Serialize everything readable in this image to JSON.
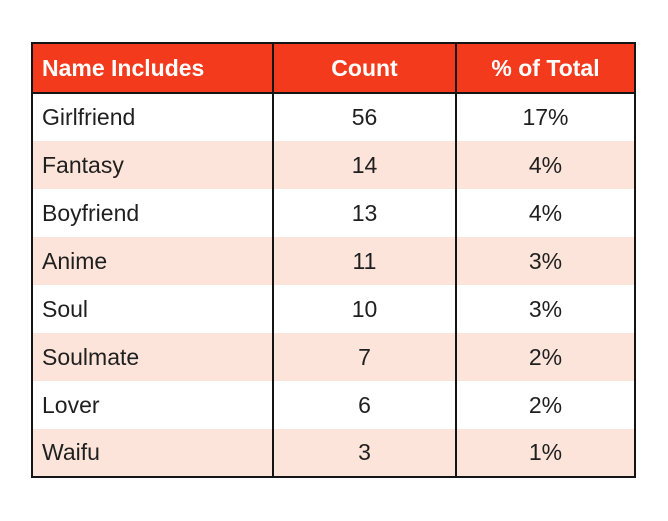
{
  "chart_data": {
    "type": "table",
    "title": "",
    "columns": [
      "Name Includes",
      "Count",
      "% of Total"
    ],
    "rows": [
      [
        "Girlfriend",
        "56",
        "17%"
      ],
      [
        "Fantasy",
        "14",
        "4%"
      ],
      [
        "Boyfriend",
        "13",
        "4%"
      ],
      [
        "Anime",
        "11",
        "3%"
      ],
      [
        "Soul",
        "10",
        "3%"
      ],
      [
        "Soulmate",
        "7",
        "2%"
      ],
      [
        "Lover",
        "6",
        "2%"
      ],
      [
        "Waifu",
        "3",
        "1%"
      ]
    ]
  },
  "theme": {
    "header_bg": "#f43a1d",
    "header_text": "#ffffff",
    "stripe_bg": "#fce4da",
    "row_bg": "#ffffff",
    "border_color": "#141414",
    "text_color": "#1f1f1f",
    "page_bg": "#ffffff"
  }
}
